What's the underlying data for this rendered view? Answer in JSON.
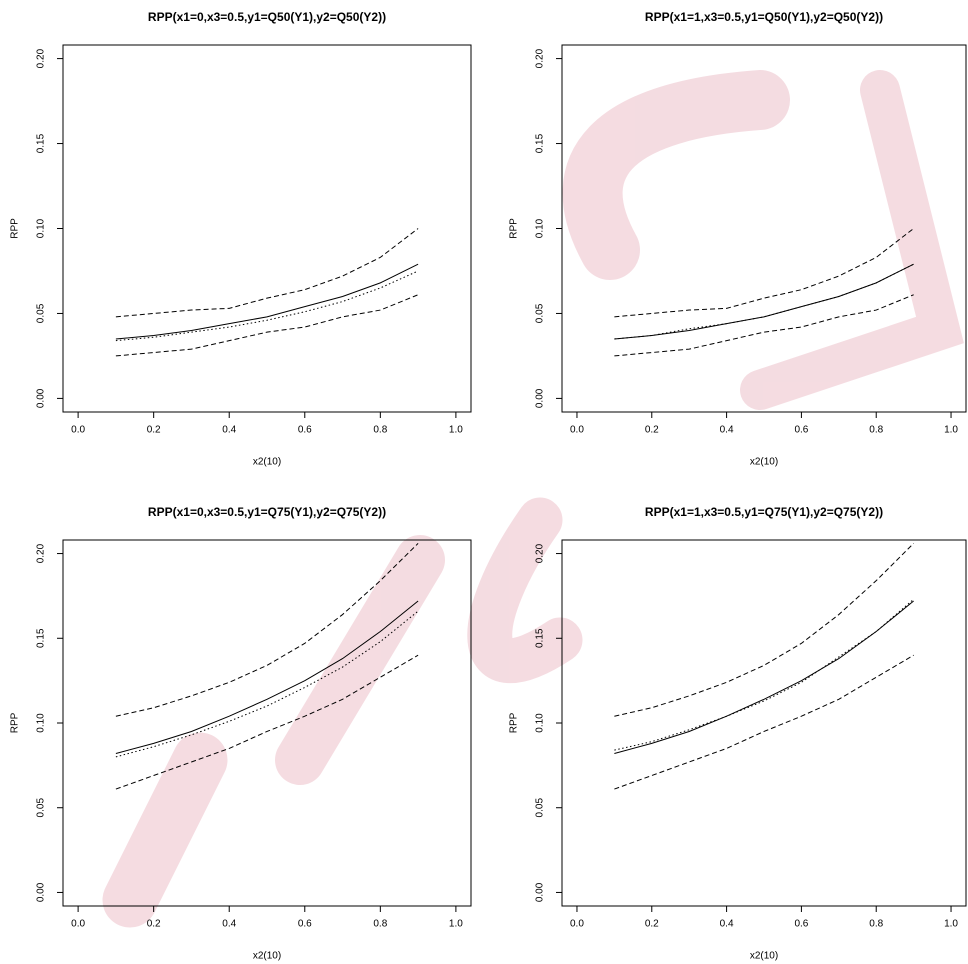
{
  "chart_data": [
    {
      "type": "line",
      "title": "RPP(x1=0,x3=0.5,y1=Q50(Y1),y2=Q50(Y2))",
      "x_label": "x2(10)",
      "y_label": "RPP",
      "x": [
        0.1,
        0.2,
        0.3,
        0.4,
        0.5,
        0.6,
        0.7,
        0.8,
        0.9
      ],
      "xlim": [
        -0.04,
        1.04
      ],
      "ylim": [
        -0.008,
        0.208
      ],
      "xticks": [
        {
          "value": 0,
          "label": "0.0"
        },
        {
          "value": 0.2,
          "label": "0.2"
        },
        {
          "value": 0.4,
          "label": "0.4"
        },
        {
          "value": 0.6,
          "label": "0.6"
        },
        {
          "value": 0.8,
          "label": "0.8"
        },
        {
          "value": 1,
          "label": "1.0"
        }
      ],
      "yticks": [
        {
          "value": 0,
          "label": "0.00"
        },
        {
          "value": 0.05,
          "label": "0.05"
        },
        {
          "value": 0.1,
          "label": "0.10"
        },
        {
          "value": 0.15,
          "label": "0.15"
        },
        {
          "value": 0.2,
          "label": "0.20"
        }
      ],
      "series": [
        {
          "color": "#000000",
          "linestyle": "solid",
          "values": [
            0.035,
            0.037,
            0.04,
            0.044,
            0.048,
            0.054,
            0.06,
            0.068,
            0.079
          ]
        },
        {
          "color": "#000000",
          "linestyle": "dotted",
          "values": [
            0.034,
            0.036,
            0.039,
            0.042,
            0.046,
            0.051,
            0.057,
            0.065,
            0.075
          ]
        },
        {
          "color": "#000000",
          "linestyle": "dashed",
          "values": [
            0.025,
            0.027,
            0.029,
            0.034,
            0.039,
            0.042,
            0.048,
            0.052,
            0.061
          ]
        },
        {
          "color": "#000000",
          "linestyle": "dashed",
          "values": [
            0.048,
            0.05,
            0.052,
            0.053,
            0.059,
            0.064,
            0.072,
            0.083,
            0.1
          ]
        }
      ]
    },
    {
      "type": "line",
      "title": "RPP(x1=1,x3=0.5,y1=Q50(Y1),y2=Q50(Y2))",
      "x_label": "x2(10)",
      "y_label": "RPP",
      "x": [
        0.1,
        0.2,
        0.3,
        0.4,
        0.5,
        0.6,
        0.7,
        0.8,
        0.9
      ],
      "xlim": [
        -0.04,
        1.04
      ],
      "ylim": [
        -0.008,
        0.208
      ],
      "xticks": [
        {
          "value": 0,
          "label": "0.0"
        },
        {
          "value": 0.2,
          "label": "0.2"
        },
        {
          "value": 0.4,
          "label": "0.4"
        },
        {
          "value": 0.6,
          "label": "0.6"
        },
        {
          "value": 0.8,
          "label": "0.8"
        },
        {
          "value": 1,
          "label": "1.0"
        }
      ],
      "yticks": [
        {
          "value": 0,
          "label": "0.00"
        },
        {
          "value": 0.05,
          "label": "0.05"
        },
        {
          "value": 0.1,
          "label": "0.10"
        },
        {
          "value": 0.15,
          "label": "0.15"
        },
        {
          "value": 0.2,
          "label": "0.20"
        }
      ],
      "series": [
        {
          "color": "#000000",
          "linestyle": "solid",
          "values": [
            0.035,
            0.037,
            0.04,
            0.044,
            0.048,
            0.054,
            0.06,
            0.068,
            0.079
          ]
        },
        {
          "color": "#000000",
          "linestyle": "dotted",
          "values": [
            0.035,
            0.037,
            0.041,
            0.044,
            0.048,
            0.054,
            0.06,
            0.068,
            0.079
          ]
        },
        {
          "color": "#000000",
          "linestyle": "dashed",
          "values": [
            0.025,
            0.027,
            0.029,
            0.034,
            0.039,
            0.042,
            0.048,
            0.052,
            0.061
          ]
        },
        {
          "color": "#000000",
          "linestyle": "dashed",
          "values": [
            0.048,
            0.05,
            0.052,
            0.053,
            0.059,
            0.064,
            0.072,
            0.083,
            0.1
          ]
        }
      ]
    },
    {
      "type": "line",
      "title": "RPP(x1=0,x3=0.5,y1=Q75(Y1),y2=Q75(Y2))",
      "x_label": "x2(10)",
      "y_label": "RPP",
      "x": [
        0.1,
        0.2,
        0.3,
        0.4,
        0.5,
        0.6,
        0.7,
        0.8,
        0.9
      ],
      "xlim": [
        -0.04,
        1.04
      ],
      "ylim": [
        -0.008,
        0.208
      ],
      "xticks": [
        {
          "value": 0,
          "label": "0.0"
        },
        {
          "value": 0.2,
          "label": "0.2"
        },
        {
          "value": 0.4,
          "label": "0.4"
        },
        {
          "value": 0.6,
          "label": "0.6"
        },
        {
          "value": 0.8,
          "label": "0.8"
        },
        {
          "value": 1,
          "label": "1.0"
        }
      ],
      "yticks": [
        {
          "value": 0,
          "label": "0.00"
        },
        {
          "value": 0.05,
          "label": "0.05"
        },
        {
          "value": 0.1,
          "label": "0.10"
        },
        {
          "value": 0.15,
          "label": "0.15"
        },
        {
          "value": 0.2,
          "label": "0.20"
        }
      ],
      "series": [
        {
          "color": "#000000",
          "linestyle": "solid",
          "values": [
            0.082,
            0.088,
            0.095,
            0.104,
            0.114,
            0.125,
            0.138,
            0.154,
            0.172
          ]
        },
        {
          "color": "#000000",
          "linestyle": "dotted",
          "values": [
            0.08,
            0.086,
            0.093,
            0.101,
            0.11,
            0.121,
            0.133,
            0.148,
            0.166
          ]
        },
        {
          "color": "#000000",
          "linestyle": "dashed",
          "values": [
            0.061,
            0.069,
            0.077,
            0.085,
            0.095,
            0.104,
            0.114,
            0.127,
            0.14
          ]
        },
        {
          "color": "#000000",
          "linestyle": "dashed",
          "values": [
            0.104,
            0.109,
            0.116,
            0.124,
            0.134,
            0.147,
            0.164,
            0.184,
            0.206
          ]
        }
      ]
    },
    {
      "type": "line",
      "title": "RPP(x1=1,x3=0.5,y1=Q75(Y1),y2=Q75(Y2))",
      "x_label": "x2(10)",
      "y_label": "RPP",
      "x": [
        0.1,
        0.2,
        0.3,
        0.4,
        0.5,
        0.6,
        0.7,
        0.8,
        0.9
      ],
      "xlim": [
        -0.04,
        1.04
      ],
      "ylim": [
        -0.008,
        0.208
      ],
      "xticks": [
        {
          "value": 0,
          "label": "0.0"
        },
        {
          "value": 0.2,
          "label": "0.2"
        },
        {
          "value": 0.4,
          "label": "0.4"
        },
        {
          "value": 0.6,
          "label": "0.6"
        },
        {
          "value": 0.8,
          "label": "0.8"
        },
        {
          "value": 1,
          "label": "1.0"
        }
      ],
      "yticks": [
        {
          "value": 0,
          "label": "0.00"
        },
        {
          "value": 0.05,
          "label": "0.05"
        },
        {
          "value": 0.1,
          "label": "0.10"
        },
        {
          "value": 0.15,
          "label": "0.15"
        },
        {
          "value": 0.2,
          "label": "0.20"
        }
      ],
      "series": [
        {
          "color": "#000000",
          "linestyle": "solid",
          "values": [
            0.082,
            0.088,
            0.095,
            0.104,
            0.114,
            0.125,
            0.138,
            0.154,
            0.172
          ]
        },
        {
          "color": "#000000",
          "linestyle": "dotted",
          "values": [
            0.084,
            0.089,
            0.096,
            0.104,
            0.113,
            0.124,
            0.139,
            0.154,
            0.173
          ]
        },
        {
          "color": "#000000",
          "linestyle": "dashed",
          "values": [
            0.061,
            0.069,
            0.077,
            0.085,
            0.095,
            0.104,
            0.114,
            0.127,
            0.14
          ]
        },
        {
          "color": "#000000",
          "linestyle": "dashed",
          "values": [
            0.104,
            0.109,
            0.116,
            0.124,
            0.134,
            0.147,
            0.164,
            0.184,
            0.206
          ]
        }
      ]
    }
  ]
}
